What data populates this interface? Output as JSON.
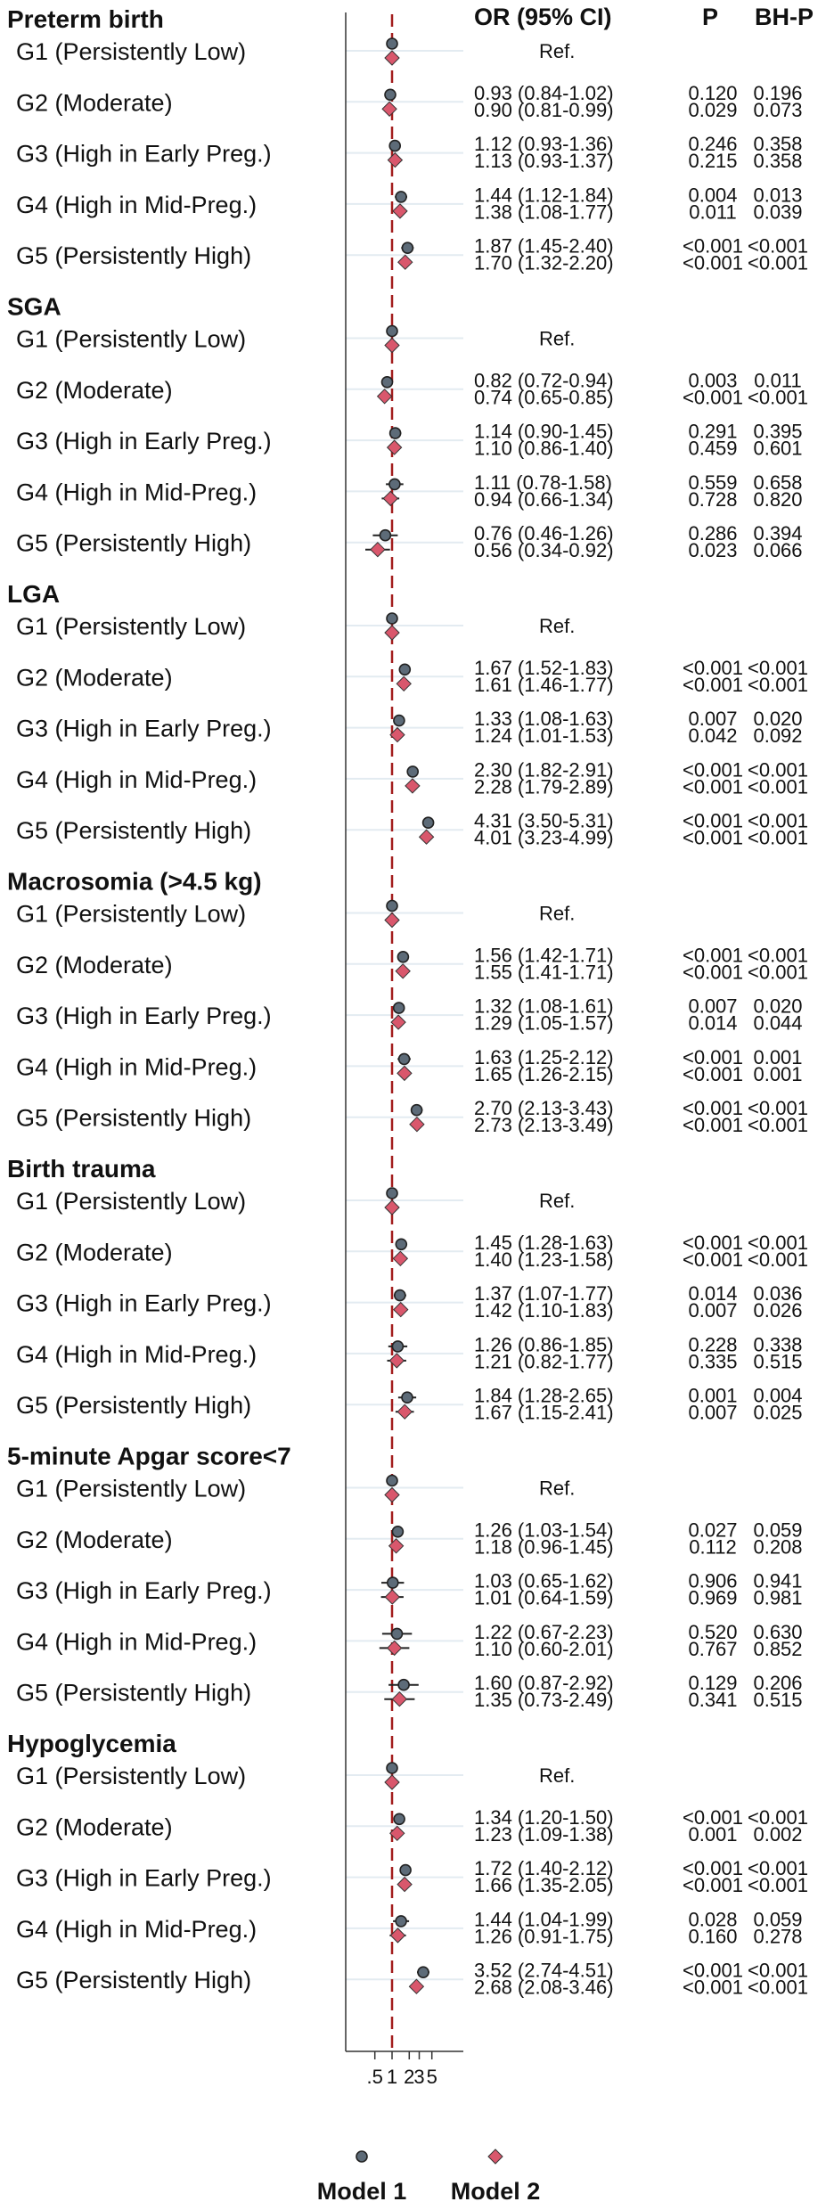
{
  "chart_data": {
    "type": "forest",
    "x_scale": "log",
    "x_ticks": [
      ".5",
      "1",
      "2",
      "3",
      "5"
    ],
    "x_tick_values": [
      0.5,
      1,
      2,
      3,
      5
    ],
    "reference_line": 1,
    "columns": {
      "or": "OR (95% CI)",
      "p": "P",
      "bhp": "BH-P"
    },
    "legend": [
      {
        "name": "Model 1",
        "color": "#5d6b78",
        "shape": "circle"
      },
      {
        "name": "Model 2",
        "color": "#d9576c",
        "shape": "diamond"
      }
    ],
    "ref_text": "Ref.",
    "groups": [
      {
        "title": "Preterm birth",
        "rows": [
          {
            "label": "G1 (Persistently Low)",
            "ref": true
          },
          {
            "label": "G2 (Moderate)",
            "m1": {
              "or": 0.93,
              "lo": 0.84,
              "hi": 1.02,
              "text": "0.93 (0.84-1.02)",
              "p": "0.120",
              "bhp": "0.196"
            },
            "m2": {
              "or": 0.9,
              "lo": 0.81,
              "hi": 0.99,
              "text": "0.90 (0.81-0.99)",
              "p": "0.029",
              "bhp": "0.073"
            }
          },
          {
            "label": "G3 (High in Early Preg.)",
            "m1": {
              "or": 1.12,
              "lo": 0.93,
              "hi": 1.36,
              "text": "1.12 (0.93-1.36)",
              "p": "0.246",
              "bhp": "0.358"
            },
            "m2": {
              "or": 1.13,
              "lo": 0.93,
              "hi": 1.37,
              "text": "1.13 (0.93-1.37)",
              "p": "0.215",
              "bhp": "0.358"
            }
          },
          {
            "label": "G4 (High in Mid-Preg.)",
            "m1": {
              "or": 1.44,
              "lo": 1.12,
              "hi": 1.84,
              "text": "1.44 (1.12-1.84)",
              "p": "0.004",
              "bhp": "0.013"
            },
            "m2": {
              "or": 1.38,
              "lo": 1.08,
              "hi": 1.77,
              "text": "1.38 (1.08-1.77)",
              "p": "0.011",
              "bhp": "0.039"
            }
          },
          {
            "label": "G5 (Persistently High)",
            "m1": {
              "or": 1.87,
              "lo": 1.45,
              "hi": 2.4,
              "text": "1.87 (1.45-2.40)",
              "p": "<0.001",
              "bhp": "<0.001"
            },
            "m2": {
              "or": 1.7,
              "lo": 1.32,
              "hi": 2.2,
              "text": "1.70 (1.32-2.20)",
              "p": "<0.001",
              "bhp": "<0.001"
            }
          }
        ]
      },
      {
        "title": "SGA",
        "rows": [
          {
            "label": "G1 (Persistently Low)",
            "ref": true
          },
          {
            "label": "G2 (Moderate)",
            "m1": {
              "or": 0.82,
              "lo": 0.72,
              "hi": 0.94,
              "text": "0.82 (0.72-0.94)",
              "p": "0.003",
              "bhp": "0.011"
            },
            "m2": {
              "or": 0.74,
              "lo": 0.65,
              "hi": 0.85,
              "text": "0.74 (0.65-0.85)",
              "p": "<0.001",
              "bhp": "<0.001"
            }
          },
          {
            "label": "G3 (High in Early Preg.)",
            "m1": {
              "or": 1.14,
              "lo": 0.9,
              "hi": 1.45,
              "text": "1.14 (0.90-1.45)",
              "p": "0.291",
              "bhp": "0.395"
            },
            "m2": {
              "or": 1.1,
              "lo": 0.86,
              "hi": 1.4,
              "text": "1.10 (0.86-1.40)",
              "p": "0.459",
              "bhp": "0.601"
            }
          },
          {
            "label": "G4 (High in Mid-Preg.)",
            "m1": {
              "or": 1.11,
              "lo": 0.78,
              "hi": 1.58,
              "text": "1.11 (0.78-1.58)",
              "p": "0.559",
              "bhp": "0.658"
            },
            "m2": {
              "or": 0.94,
              "lo": 0.66,
              "hi": 1.34,
              "text": "0.94 (0.66-1.34)",
              "p": "0.728",
              "bhp": "0.820"
            }
          },
          {
            "label": "G5 (Persistently High)",
            "m1": {
              "or": 0.76,
              "lo": 0.46,
              "hi": 1.26,
              "text": "0.76 (0.46-1.26)",
              "p": "0.286",
              "bhp": "0.394"
            },
            "m2": {
              "or": 0.56,
              "lo": 0.34,
              "hi": 0.92,
              "text": "0.56 (0.34-0.92)",
              "p": "0.023",
              "bhp": "0.066"
            }
          }
        ]
      },
      {
        "title": "LGA",
        "rows": [
          {
            "label": "G1 (Persistently Low)",
            "ref": true
          },
          {
            "label": "G2 (Moderate)",
            "m1": {
              "or": 1.67,
              "lo": 1.52,
              "hi": 1.83,
              "text": "1.67 (1.52-1.83)",
              "p": "<0.001",
              "bhp": "<0.001"
            },
            "m2": {
              "or": 1.61,
              "lo": 1.46,
              "hi": 1.77,
              "text": "1.61 (1.46-1.77)",
              "p": "<0.001",
              "bhp": "<0.001"
            }
          },
          {
            "label": "G3 (High in Early Preg.)",
            "m1": {
              "or": 1.33,
              "lo": 1.08,
              "hi": 1.63,
              "text": "1.33 (1.08-1.63)",
              "p": "0.007",
              "bhp": "0.020"
            },
            "m2": {
              "or": 1.24,
              "lo": 1.01,
              "hi": 1.53,
              "text": "1.24 (1.01-1.53)",
              "p": "0.042",
              "bhp": "0.092"
            }
          },
          {
            "label": "G4 (High in Mid-Preg.)",
            "m1": {
              "or": 2.3,
              "lo": 1.82,
              "hi": 2.91,
              "text": "2.30 (1.82-2.91)",
              "p": "<0.001",
              "bhp": "<0.001"
            },
            "m2": {
              "or": 2.28,
              "lo": 1.79,
              "hi": 2.89,
              "text": "2.28 (1.79-2.89)",
              "p": "<0.001",
              "bhp": "<0.001"
            }
          },
          {
            "label": "G5 (Persistently High)",
            "m1": {
              "or": 4.31,
              "lo": 3.5,
              "hi": 5.31,
              "text": "4.31 (3.50-5.31)",
              "p": "<0.001",
              "bhp": "<0.001"
            },
            "m2": {
              "or": 4.01,
              "lo": 3.23,
              "hi": 4.99,
              "text": "4.01 (3.23-4.99)",
              "p": "<0.001",
              "bhp": "<0.001"
            }
          }
        ]
      },
      {
        "title": "Macrosomia (>4.5 kg)",
        "rows": [
          {
            "label": "G1 (Persistently Low)",
            "ref": true
          },
          {
            "label": "G2 (Moderate)",
            "m1": {
              "or": 1.56,
              "lo": 1.42,
              "hi": 1.71,
              "text": "1.56 (1.42-1.71)",
              "p": "<0.001",
              "bhp": "<0.001"
            },
            "m2": {
              "or": 1.55,
              "lo": 1.41,
              "hi": 1.71,
              "text": "1.55 (1.41-1.71)",
              "p": "<0.001",
              "bhp": "<0.001"
            }
          },
          {
            "label": "G3 (High in Early Preg.)",
            "m1": {
              "or": 1.32,
              "lo": 1.08,
              "hi": 1.61,
              "text": "1.32 (1.08-1.61)",
              "p": "0.007",
              "bhp": "0.020"
            },
            "m2": {
              "or": 1.29,
              "lo": 1.05,
              "hi": 1.57,
              "text": "1.29 (1.05-1.57)",
              "p": "0.014",
              "bhp": "0.044"
            }
          },
          {
            "label": "G4 (High in Mid-Preg.)",
            "m1": {
              "or": 1.63,
              "lo": 1.25,
              "hi": 2.12,
              "text": "1.63 (1.25-2.12)",
              "p": "<0.001",
              "bhp": "0.001"
            },
            "m2": {
              "or": 1.65,
              "lo": 1.26,
              "hi": 2.15,
              "text": "1.65 (1.26-2.15)",
              "p": "<0.001",
              "bhp": "0.001"
            }
          },
          {
            "label": "G5 (Persistently High)",
            "m1": {
              "or": 2.7,
              "lo": 2.13,
              "hi": 3.43,
              "text": "2.70 (2.13-3.43)",
              "p": "<0.001",
              "bhp": "<0.001"
            },
            "m2": {
              "or": 2.73,
              "lo": 2.13,
              "hi": 3.49,
              "text": "2.73 (2.13-3.49)",
              "p": "<0.001",
              "bhp": "<0.001"
            }
          }
        ]
      },
      {
        "title": "Birth trauma",
        "rows": [
          {
            "label": "G1 (Persistently Low)",
            "ref": true
          },
          {
            "label": "G2 (Moderate)",
            "m1": {
              "or": 1.45,
              "lo": 1.28,
              "hi": 1.63,
              "text": "1.45 (1.28-1.63)",
              "p": "<0.001",
              "bhp": "<0.001"
            },
            "m2": {
              "or": 1.4,
              "lo": 1.23,
              "hi": 1.58,
              "text": "1.40 (1.23-1.58)",
              "p": "<0.001",
              "bhp": "<0.001"
            }
          },
          {
            "label": "G3 (High in Early Preg.)",
            "m1": {
              "or": 1.37,
              "lo": 1.07,
              "hi": 1.77,
              "text": "1.37 (1.07-1.77)",
              "p": "0.014",
              "bhp": "0.036"
            },
            "m2": {
              "or": 1.42,
              "lo": 1.1,
              "hi": 1.83,
              "text": "1.42 (1.10-1.83)",
              "p": "0.007",
              "bhp": "0.026"
            }
          },
          {
            "label": "G4 (High in Mid-Preg.)",
            "m1": {
              "or": 1.26,
              "lo": 0.86,
              "hi": 1.85,
              "text": "1.26 (0.86-1.85)",
              "p": "0.228",
              "bhp": "0.338"
            },
            "m2": {
              "or": 1.21,
              "lo": 0.82,
              "hi": 1.77,
              "text": "1.21 (0.82-1.77)",
              "p": "0.335",
              "bhp": "0.515"
            }
          },
          {
            "label": "G5 (Persistently High)",
            "m1": {
              "or": 1.84,
              "lo": 1.28,
              "hi": 2.65,
              "text": "1.84 (1.28-2.65)",
              "p": "0.001",
              "bhp": "0.004"
            },
            "m2": {
              "or": 1.67,
              "lo": 1.15,
              "hi": 2.41,
              "text": "1.67 (1.15-2.41)",
              "p": "0.007",
              "bhp": "0.025"
            }
          }
        ]
      },
      {
        "title": "5-minute Apgar score<7",
        "rows": [
          {
            "label": "G1 (Persistently Low)",
            "ref": true
          },
          {
            "label": "G2 (Moderate)",
            "m1": {
              "or": 1.26,
              "lo": 1.03,
              "hi": 1.54,
              "text": "1.26 (1.03-1.54)",
              "p": "0.027",
              "bhp": "0.059"
            },
            "m2": {
              "or": 1.18,
              "lo": 0.96,
              "hi": 1.45,
              "text": "1.18 (0.96-1.45)",
              "p": "0.112",
              "bhp": "0.208"
            }
          },
          {
            "label": "G3 (High in Early Preg.)",
            "m1": {
              "or": 1.03,
              "lo": 0.65,
              "hi": 1.62,
              "text": "1.03 (0.65-1.62)",
              "p": "0.906",
              "bhp": "0.941"
            },
            "m2": {
              "or": 1.01,
              "lo": 0.64,
              "hi": 1.59,
              "text": "1.01 (0.64-1.59)",
              "p": "0.969",
              "bhp": "0.981"
            }
          },
          {
            "label": "G4 (High in Mid-Preg.)",
            "m1": {
              "or": 1.22,
              "lo": 0.67,
              "hi": 2.23,
              "text": "1.22 (0.67-2.23)",
              "p": "0.520",
              "bhp": "0.630"
            },
            "m2": {
              "or": 1.1,
              "lo": 0.6,
              "hi": 2.01,
              "text": "1.10 (0.60-2.01)",
              "p": "0.767",
              "bhp": "0.852"
            }
          },
          {
            "label": "G5 (Persistently High)",
            "m1": {
              "or": 1.6,
              "lo": 0.87,
              "hi": 2.92,
              "text": "1.60 (0.87-2.92)",
              "p": "0.129",
              "bhp": "0.206"
            },
            "m2": {
              "or": 1.35,
              "lo": 0.73,
              "hi": 2.49,
              "text": "1.35 (0.73-2.49)",
              "p": "0.341",
              "bhp": "0.515"
            }
          }
        ]
      },
      {
        "title": "Hypoglycemia",
        "rows": [
          {
            "label": "G1 (Persistently Low)",
            "ref": true
          },
          {
            "label": "G2 (Moderate)",
            "m1": {
              "or": 1.34,
              "lo": 1.2,
              "hi": 1.5,
              "text": "1.34 (1.20-1.50)",
              "p": "<0.001",
              "bhp": "<0.001"
            },
            "m2": {
              "or": 1.23,
              "lo": 1.09,
              "hi": 1.38,
              "text": "1.23 (1.09-1.38)",
              "p": "0.001",
              "bhp": "0.002"
            }
          },
          {
            "label": "G3 (High in Early Preg.)",
            "m1": {
              "or": 1.72,
              "lo": 1.4,
              "hi": 2.12,
              "text": "1.72 (1.40-2.12)",
              "p": "<0.001",
              "bhp": "<0.001"
            },
            "m2": {
              "or": 1.66,
              "lo": 1.35,
              "hi": 2.05,
              "text": "1.66 (1.35-2.05)",
              "p": "<0.001",
              "bhp": "<0.001"
            }
          },
          {
            "label": "G4 (High in Mid-Preg.)",
            "m1": {
              "or": 1.44,
              "lo": 1.04,
              "hi": 1.99,
              "text": "1.44 (1.04-1.99)",
              "p": "0.028",
              "bhp": "0.059"
            },
            "m2": {
              "or": 1.26,
              "lo": 0.91,
              "hi": 1.75,
              "text": "1.26 (0.91-1.75)",
              "p": "0.160",
              "bhp": "0.278"
            }
          },
          {
            "label": "G5 (Persistently High)",
            "m1": {
              "or": 3.52,
              "lo": 2.74,
              "hi": 4.51,
              "text": "3.52 (2.74-4.51)",
              "p": "<0.001",
              "bhp": "<0.001"
            },
            "m2": {
              "or": 2.68,
              "lo": 2.08,
              "hi": 3.46,
              "text": "2.68 (2.08-3.46)",
              "p": "<0.001",
              "bhp": "<0.001"
            }
          }
        ]
      }
    ]
  }
}
